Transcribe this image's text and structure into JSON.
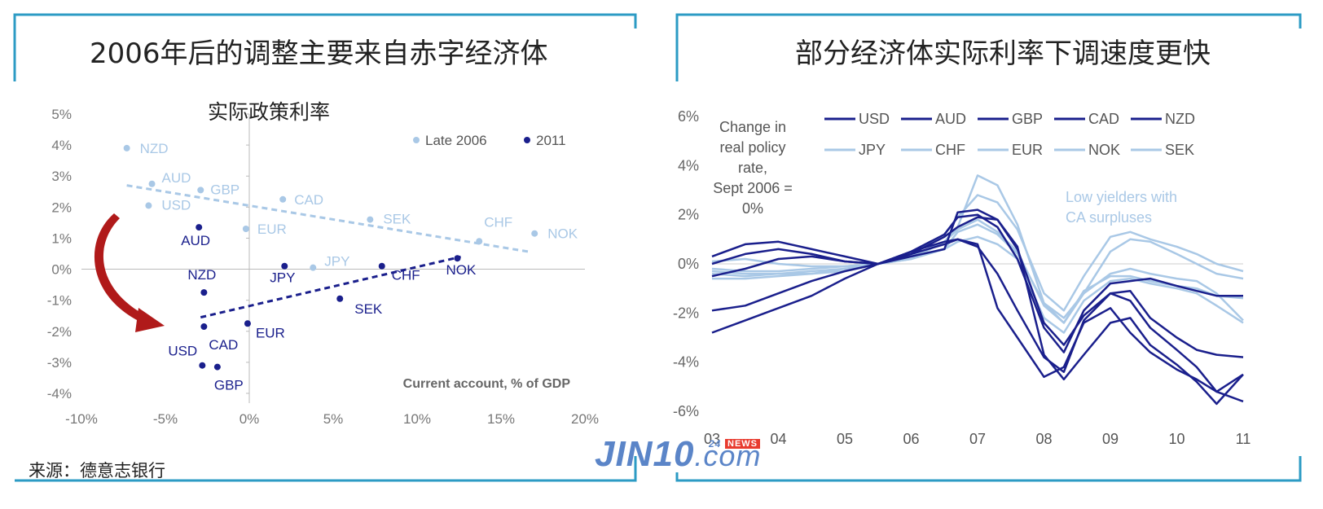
{
  "left": {
    "title": "2006年后的调整主要来自赤字经济体",
    "subtitle": "实际政策利率",
    "source": "来源：德意志银行"
  },
  "right": {
    "title": "部分经济体实际利率下调速度更快"
  },
  "watermark": {
    "main": "JIN10",
    "suffix": ".com",
    "tag_num": "24",
    "tag": "NEWS"
  },
  "colors": {
    "dark": "#1a1f8c",
    "light": "#a9c8e6",
    "frame": "#2c9bc4",
    "arrow": "#b01a1a"
  },
  "chart_data": [
    {
      "type": "scatter",
      "title": "实际政策利率",
      "xlabel": "Current account, % of GDP",
      "ylabel": "",
      "xlim": [
        -10,
        20
      ],
      "ylim": [
        -4,
        5
      ],
      "xticks": [
        "-10%",
        "-5%",
        "0%",
        "5%",
        "10%",
        "15%",
        "20%"
      ],
      "yticks": [
        "5%",
        "4%",
        "3%",
        "2%",
        "1%",
        "0%",
        "-1%",
        "-2%",
        "-3%",
        "-4%"
      ],
      "legend": [
        "Late 2006",
        "2011"
      ],
      "legend_position": "top-right",
      "series": [
        {
          "name": "Late 2006",
          "points": [
            {
              "label": "NZD",
              "x": -7.3,
              "y": 3.9
            },
            {
              "label": "AUD",
              "x": -5.8,
              "y": 2.75
            },
            {
              "label": "GBP",
              "x": -2.9,
              "y": 2.55
            },
            {
              "label": "USD",
              "x": -6.0,
              "y": 2.05
            },
            {
              "label": "CAD",
              "x": 2.0,
              "y": 2.25
            },
            {
              "label": "EUR",
              "x": -0.2,
              "y": 1.3
            },
            {
              "label": "SEK",
              "x": 7.2,
              "y": 1.6
            },
            {
              "label": "CHF",
              "x": 13.7,
              "y": 0.9
            },
            {
              "label": "NOK",
              "x": 17.0,
              "y": 1.15
            },
            {
              "label": "JPY",
              "x": 3.8,
              "y": 0.05
            }
          ],
          "trend": {
            "x": [
              -7.3,
              16.8
            ],
            "y": [
              2.7,
              0.55
            ]
          }
        },
        {
          "name": "2011",
          "points": [
            {
              "label": "AUD",
              "x": -3.0,
              "y": 1.35
            },
            {
              "label": "NZD",
              "x": -2.7,
              "y": -0.75
            },
            {
              "label": "CAD",
              "x": -2.7,
              "y": -1.85
            },
            {
              "label": "EUR",
              "x": -0.1,
              "y": -1.75
            },
            {
              "label": "USD",
              "x": -2.8,
              "y": -3.1
            },
            {
              "label": "GBP",
              "x": -1.9,
              "y": -3.15
            },
            {
              "label": "JPY",
              "x": 2.1,
              "y": 0.1
            },
            {
              "label": "CHF",
              "x": 7.9,
              "y": 0.1
            },
            {
              "label": "SEK",
              "x": 5.4,
              "y": -0.95
            },
            {
              "label": "NOK",
              "x": 12.4,
              "y": 0.35
            }
          ],
          "trend": {
            "x": [
              -2.9,
              12.6
            ],
            "y": [
              -1.55,
              0.4
            ]
          }
        }
      ]
    },
    {
      "type": "line",
      "title": "",
      "annotation": "Change in real policy rate, Sept 2006 = 0%",
      "note": "Low yielders with CA surpluses",
      "xlabel": "",
      "ylabel": "",
      "x": [
        2003,
        2003.5,
        2004,
        2004.5,
        2005,
        2005.5,
        2006,
        2006.5,
        2006.7,
        2007,
        2007.3,
        2007.6,
        2008,
        2008.3,
        2008.6,
        2009,
        2009.3,
        2009.6,
        2010,
        2010.3,
        2010.6,
        2011
      ],
      "xticks": [
        "03",
        "04",
        "05",
        "06",
        "07",
        "08",
        "09",
        "10",
        "11"
      ],
      "xlim": [
        2003,
        2011
      ],
      "yticks": [
        "6%",
        "4%",
        "2%",
        "0%",
        "-2%",
        "-4%",
        "-6%"
      ],
      "ylim": [
        -6,
        6
      ],
      "series": [
        {
          "name": "USD",
          "group": "dark",
          "values": [
            -2.8,
            -2.3,
            -1.8,
            -1.3,
            -0.6,
            0,
            0.4,
            0.8,
            1.0,
            0.8,
            -1.8,
            -3.0,
            -4.6,
            -4.2,
            -2.4,
            -1.8,
            -2.8,
            -3.6,
            -4.3,
            -4.7,
            -5.2,
            -5.6
          ]
        },
        {
          "name": "AUD",
          "group": "dark",
          "values": [
            0.0,
            0.4,
            0.6,
            0.4,
            0.1,
            0,
            0.5,
            1.2,
            1.9,
            2.0,
            1.5,
            0.2,
            -2.6,
            -3.6,
            -1.9,
            -0.8,
            -0.7,
            -0.6,
            -0.9,
            -1.1,
            -1.3,
            -1.3
          ]
        },
        {
          "name": "GBP",
          "group": "dark",
          "values": [
            -1.9,
            -1.7,
            -1.2,
            -0.7,
            -0.3,
            0,
            0.5,
            0.9,
            1.0,
            0.7,
            -0.4,
            -1.9,
            -3.8,
            -4.4,
            -2.3,
            -1.2,
            -1.5,
            -2.6,
            -3.5,
            -4.2,
            -5.2,
            -4.5
          ]
        },
        {
          "name": "CAD",
          "group": "dark",
          "values": [
            -0.5,
            -0.2,
            0.2,
            0.3,
            0.1,
            0,
            0.4,
            1.1,
            1.5,
            1.9,
            1.8,
            0.6,
            -2.4,
            -3.3,
            -2.1,
            -1.2,
            -1.1,
            -2.2,
            -3.0,
            -3.5,
            -3.7,
            -3.8
          ]
        },
        {
          "name": "NZD",
          "group": "dark",
          "values": [
            0.3,
            0.8,
            0.9,
            0.6,
            0.3,
            0,
            0.3,
            0.6,
            2.1,
            2.2,
            1.8,
            0.7,
            -3.7,
            -4.7,
            -3.7,
            -2.4,
            -2.2,
            -3.3,
            -4.1,
            -4.8,
            -5.7,
            -4.5
          ]
        },
        {
          "name": "JPY",
          "group": "light",
          "values": [
            -0.3,
            -0.4,
            -0.4,
            -0.4,
            -0.3,
            0,
            0.2,
            0.6,
            1.3,
            1.6,
            1.2,
            0.4,
            -1.6,
            -2.2,
            -1.2,
            -0.4,
            -0.2,
            -0.4,
            -0.6,
            -0.7,
            -1.2,
            -2.3
          ]
        },
        {
          "name": "CHF",
          "group": "light",
          "values": [
            -0.6,
            -0.6,
            -0.5,
            -0.4,
            -0.2,
            0,
            0.2,
            0.9,
            1.5,
            3.6,
            3.2,
            1.6,
            -1.6,
            -2.4,
            -1.2,
            0.5,
            1.0,
            0.9,
            0.4,
            0.0,
            -0.4,
            -0.6
          ]
        },
        {
          "name": "EUR",
          "group": "light",
          "values": [
            -0.2,
            -0.3,
            -0.3,
            -0.2,
            -0.1,
            0,
            0.3,
            0.6,
            0.9,
            1.1,
            0.8,
            0.2,
            -2.2,
            -2.8,
            -1.5,
            -0.7,
            -0.6,
            -0.8,
            -1.0,
            -1.2,
            -1.7,
            -2.4
          ]
        },
        {
          "name": "NOK",
          "group": "light",
          "values": [
            0.1,
            0.2,
            0.0,
            -0.1,
            -0.1,
            0,
            0.4,
            1.2,
            1.9,
            2.8,
            2.5,
            1.4,
            -1.2,
            -1.9,
            -0.5,
            1.1,
            1.3,
            1.0,
            0.7,
            0.4,
            0.0,
            -0.3
          ]
        },
        {
          "name": "SEK",
          "group": "light",
          "values": [
            -0.4,
            -0.5,
            -0.4,
            -0.3,
            -0.2,
            0,
            0.3,
            0.9,
            1.4,
            1.8,
            1.3,
            0.5,
            -1.7,
            -2.4,
            -1.1,
            -0.5,
            -0.5,
            -0.7,
            -0.9,
            -1.0,
            -1.3,
            -1.4
          ]
        }
      ]
    }
  ]
}
